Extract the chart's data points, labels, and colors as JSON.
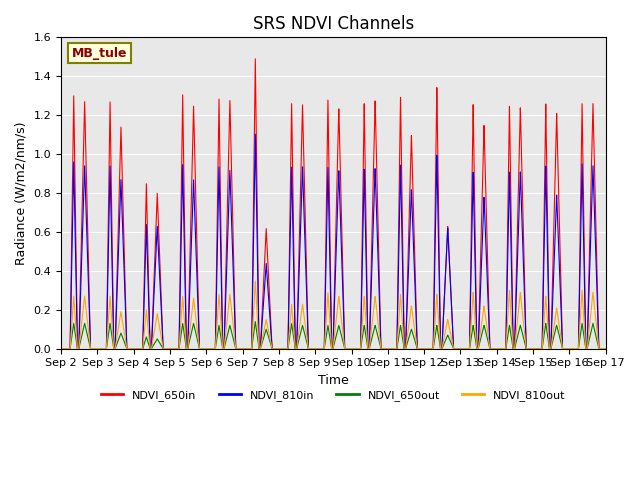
{
  "title": "SRS NDVI Channels",
  "xlabel": "Time",
  "ylabel": "Radiance (W/m2/nm/s)",
  "annotation": "MB_tule",
  "ylim": [
    0,
    1.6
  ],
  "colors": {
    "NDVI_650in": "red",
    "NDVI_810in": "blue",
    "NDVI_650out": "green",
    "NDVI_810out": "orange"
  },
  "background_color": "#e8e8e8",
  "xtick_labels": [
    "Sep 2",
    "Sep 3",
    "Sep 4",
    "Sep 5",
    "Sep 6",
    "Sep 7",
    "Sep 8",
    "Sep 9",
    "Sep 10",
    "Sep 11",
    "Sep 12",
    "Sep 13",
    "Sep 14",
    "Sep 15",
    "Sep 16",
    "Sep 17"
  ],
  "peaks1_650in": [
    1.3,
    1.27,
    0.85,
    1.31,
    1.29,
    1.5,
    1.27,
    1.29,
    1.27,
    1.3,
    1.35,
    1.26,
    1.25,
    1.26,
    1.26
  ],
  "peaks2_650in": [
    1.27,
    1.14,
    0.8,
    1.25,
    1.28,
    0.62,
    1.26,
    1.24,
    1.28,
    1.1,
    0.63,
    1.15,
    1.24,
    1.21,
    1.26
  ],
  "peaks1_810in": [
    0.96,
    0.94,
    0.64,
    0.95,
    0.94,
    1.11,
    0.94,
    0.94,
    0.93,
    0.95,
    1.0,
    0.91,
    0.91,
    0.94,
    0.95
  ],
  "peaks2_810in": [
    0.94,
    0.87,
    0.63,
    0.87,
    0.92,
    0.44,
    0.94,
    0.92,
    0.93,
    0.82,
    0.62,
    0.78,
    0.91,
    0.79,
    0.94
  ],
  "peaks1_650out": [
    0.13,
    0.13,
    0.06,
    0.13,
    0.12,
    0.14,
    0.13,
    0.12,
    0.12,
    0.12,
    0.12,
    0.12,
    0.12,
    0.13,
    0.13
  ],
  "peaks2_650out": [
    0.13,
    0.08,
    0.05,
    0.13,
    0.12,
    0.1,
    0.12,
    0.12,
    0.12,
    0.1,
    0.07,
    0.12,
    0.12,
    0.12,
    0.13
  ],
  "peaks1_810out": [
    0.27,
    0.27,
    0.2,
    0.27,
    0.28,
    0.35,
    0.23,
    0.29,
    0.27,
    0.28,
    0.28,
    0.29,
    0.3,
    0.27,
    0.3
  ],
  "peaks2_810out": [
    0.27,
    0.19,
    0.18,
    0.26,
    0.28,
    0.15,
    0.23,
    0.27,
    0.27,
    0.22,
    0.15,
    0.22,
    0.29,
    0.21,
    0.29
  ],
  "title_fontsize": 12,
  "label_fontsize": 9,
  "tick_fontsize": 8
}
